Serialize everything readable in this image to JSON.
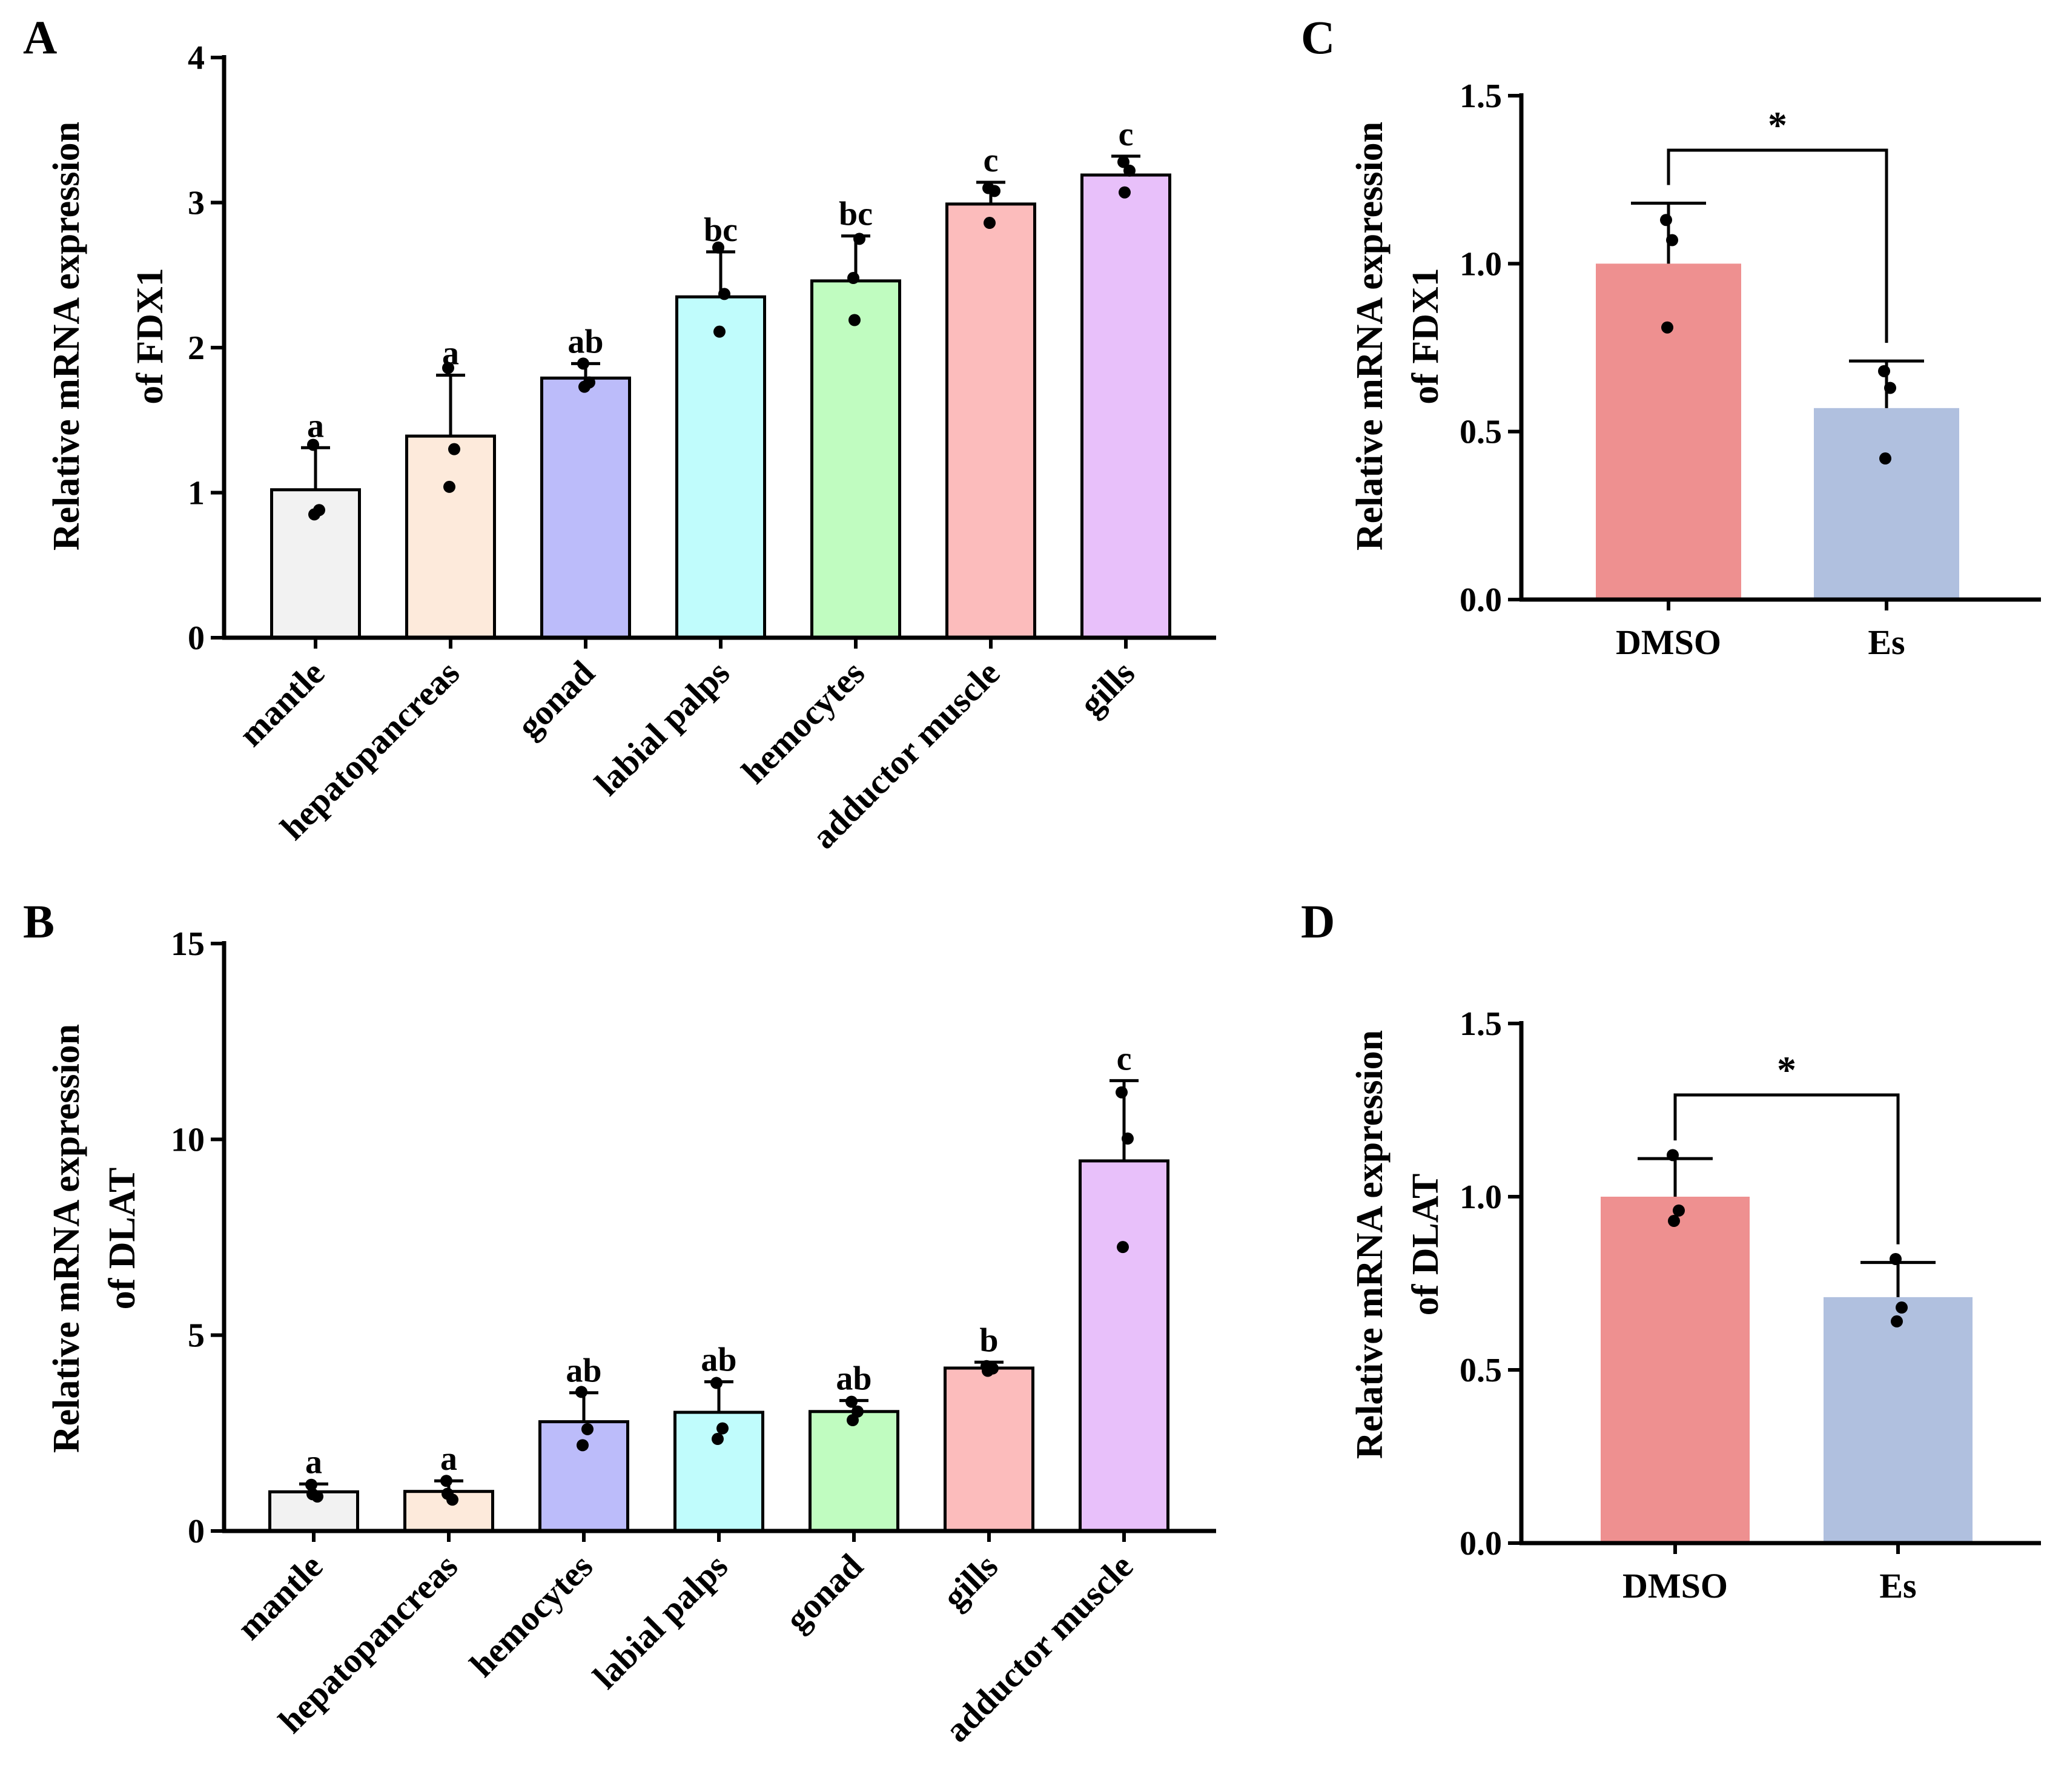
{
  "chart_data": [
    {
      "panel": "A",
      "type": "bar",
      "ylabel_line1": "Relative mRNA expression",
      "ylabel_line2": "of FDX1",
      "ylim": [
        0,
        4
      ],
      "yticks": [
        "0",
        "1",
        "2",
        "3",
        "4"
      ],
      "categories": [
        "mantle",
        "hepatopancreas",
        "gonad",
        "labial palps",
        "hemocytes",
        "adductor muscle",
        "gills"
      ],
      "values": [
        1.02,
        1.39,
        1.79,
        2.35,
        2.46,
        2.99,
        3.19
      ],
      "errors": [
        0.29,
        0.42,
        0.1,
        0.31,
        0.31,
        0.15,
        0.13
      ],
      "points": [
        [
          1.33,
          0.88,
          0.85
        ],
        [
          1.86,
          1.3,
          1.04
        ],
        [
          1.89,
          1.76,
          1.73
        ],
        [
          2.69,
          2.37,
          2.11
        ],
        [
          2.48,
          2.75,
          2.19
        ],
        [
          3.1,
          3.08,
          2.86
        ],
        [
          3.28,
          3.22,
          3.07
        ]
      ],
      "letters": [
        "a",
        "a",
        "ab",
        "bc",
        "bc",
        "c",
        "c"
      ],
      "colors": [
        "#f2f2f2",
        "#fdeadb",
        "#bcbcfa",
        "#c0fcfc",
        "#c0fcc0",
        "#fcbcbc",
        "#e8c0fa"
      ]
    },
    {
      "panel": "B",
      "type": "bar",
      "ylabel_line1": "Relative mRNA expression",
      "ylabel_line2": "of DLAT",
      "ylim": [
        0,
        15
      ],
      "yticks": [
        "0",
        "5",
        "10",
        "15"
      ],
      "categories": [
        "mantle",
        "hepatopancreas",
        "hemocytes",
        "labial palps",
        "gonad",
        "gills",
        "adductor muscle"
      ],
      "values": [
        1.0,
        1.01,
        2.79,
        3.03,
        3.05,
        4.16,
        9.45
      ],
      "errors": [
        0.2,
        0.27,
        0.74,
        0.78,
        0.28,
        0.15,
        2.05
      ],
      "points": [
        [
          1.18,
          0.88,
          0.94
        ],
        [
          1.28,
          0.8,
          0.95
        ],
        [
          3.55,
          2.6,
          2.19
        ],
        [
          3.78,
          2.62,
          2.35
        ],
        [
          3.3,
          3.05,
          2.83
        ],
        [
          4.21,
          4.15,
          4.09
        ],
        [
          11.2,
          10.02,
          7.25
        ]
      ],
      "letters": [
        "a",
        "a",
        "ab",
        "ab",
        "ab",
        "b",
        "c"
      ],
      "colors": [
        "#f2f2f2",
        "#fdeadb",
        "#bcbcfa",
        "#c0fcfc",
        "#c0fcc0",
        "#fcbcbc",
        "#e8c0fa"
      ]
    },
    {
      "panel": "C",
      "type": "bar",
      "ylabel_line1": "Relative mRNA expression",
      "ylabel_line2": "of  FDX1",
      "ylim": [
        0,
        1.5
      ],
      "yticks": [
        "0.0",
        "0.5",
        "1.0",
        "1.5"
      ],
      "categories": [
        "DMSO",
        "Es"
      ],
      "values": [
        1.0,
        0.57
      ],
      "errors": [
        0.18,
        0.14
      ],
      "points": [
        [
          1.13,
          1.07,
          0.81
        ],
        [
          0.68,
          0.63,
          0.42
        ]
      ],
      "significance": "*",
      "colors": [
        "#ee9090",
        "#b0c0df"
      ]
    },
    {
      "panel": "D",
      "type": "bar",
      "ylabel_line1": "Relative mRNA expression",
      "ylabel_line2": "of DLAT",
      "ylim": [
        0,
        1.5
      ],
      "yticks": [
        "0.0",
        "0.5",
        "1.0",
        "1.5"
      ],
      "categories": [
        "DMSO",
        "Es"
      ],
      "values": [
        1.0,
        0.71
      ],
      "errors": [
        0.11,
        0.1
      ],
      "points": [
        [
          1.12,
          0.96,
          0.93
        ],
        [
          0.82,
          0.68,
          0.64
        ]
      ],
      "significance": "*",
      "colors": [
        "#ee9090",
        "#b0c0df"
      ]
    }
  ]
}
